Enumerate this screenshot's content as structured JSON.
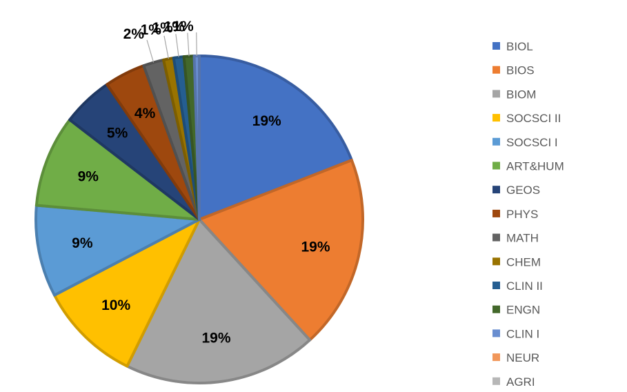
{
  "chart_data": {
    "type": "pie",
    "title": "",
    "legend_position": "right",
    "slices": [
      {
        "name": "BIOL",
        "value": 19,
        "label": "19%",
        "color": "#4472C4"
      },
      {
        "name": "BIOS",
        "value": 19,
        "label": "19%",
        "color": "#ED7D31"
      },
      {
        "name": "BIOM",
        "value": 19,
        "label": "19%",
        "color": "#A5A5A5"
      },
      {
        "name": "SOCSCI II",
        "value": 10,
        "label": "10%",
        "color": "#FFC000"
      },
      {
        "name": "SOCSCI I",
        "value": 9,
        "label": "9%",
        "color": "#5B9BD5"
      },
      {
        "name": "ART&HUM",
        "value": 9,
        "label": "9%",
        "color": "#70AD47"
      },
      {
        "name": "GEOS",
        "value": 5,
        "label": "5%",
        "color": "#264478"
      },
      {
        "name": "PHYS",
        "value": 4,
        "label": "4%",
        "color": "#9E480E"
      },
      {
        "name": "MATH",
        "value": 2,
        "label": "2%",
        "color": "#636363"
      },
      {
        "name": "CHEM",
        "value": 1,
        "label": "1%",
        "color": "#997300"
      },
      {
        "name": "CLIN II",
        "value": 1,
        "label": "1%",
        "color": "#255E91"
      },
      {
        "name": "ENGN",
        "value": 1,
        "label": "1%",
        "color": "#43682B"
      },
      {
        "name": "CLIN I",
        "value": 0.5,
        "label": "1%",
        "color": "#698ED0"
      },
      {
        "name": "NEUR",
        "value": 0,
        "label": "",
        "color": "#F1975A"
      },
      {
        "name": "AGRI",
        "value": 0,
        "label": "",
        "color": "#B7B7B7"
      }
    ]
  }
}
